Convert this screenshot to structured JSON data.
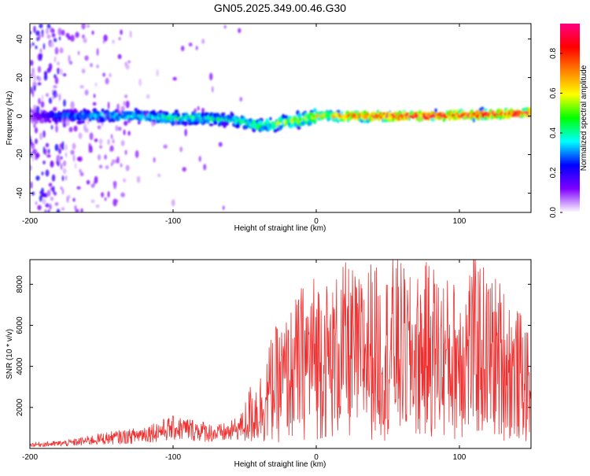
{
  "title": "GN05.2025.349.00.46.G30",
  "chart_data": [
    {
      "type": "heatmap",
      "xlabel": "Height of straight line (km)",
      "ylabel": "Frequency (Hz)",
      "xlim": [
        -200,
        150
      ],
      "ylim": [
        -50,
        48
      ],
      "xticks": [
        -200,
        -100,
        0,
        100
      ],
      "yticks": [
        -40,
        -20,
        0,
        20,
        40
      ],
      "grid": false,
      "colorbar": {
        "label": "Normalized spectral amplitude",
        "range": [
          0,
          0.95
        ],
        "ticks": [
          0.0,
          0.2,
          0.4,
          0.6,
          0.8
        ],
        "colors": [
          "#ffffff",
          "#7f00ff",
          "#0000ff",
          "#00ffff",
          "#00ff00",
          "#ffff00",
          "#ff8000",
          "#ff0000",
          "#ff0080"
        ]
      },
      "ridge": {
        "x": [
          -200,
          -175,
          -150,
          -125,
          -100,
          -80,
          -60,
          -50,
          -40,
          -30,
          -20,
          -10,
          0,
          10,
          20,
          40,
          60,
          80,
          100,
          120,
          150
        ],
        "frequency": [
          0,
          0,
          0,
          0,
          -1,
          -1,
          -2,
          -3,
          -5,
          -4,
          -3,
          -2,
          0,
          0,
          0,
          0,
          0,
          0,
          0.5,
          1,
          1.5
        ],
        "peak_amplitude": [
          0.1,
          0.3,
          0.35,
          0.35,
          0.4,
          0.4,
          0.35,
          0.4,
          0.45,
          0.45,
          0.5,
          0.55,
          0.55,
          0.6,
          0.75,
          0.8,
          0.85,
          0.85,
          0.85,
          0.85,
          0.85
        ]
      }
    },
    {
      "type": "line",
      "xlabel": "Height of straight line (km)",
      "ylabel": "SNR (10 * v/v)",
      "xlim": [
        -200,
        150
      ],
      "ylim": [
        0,
        9200
      ],
      "xticks": [
        -200,
        -100,
        0,
        100
      ],
      "yticks": [
        2000,
        4000,
        6000,
        8000
      ],
      "grid": false,
      "color": "#f03030",
      "series": [
        {
          "x": [
            -200,
            -190,
            -180,
            -170,
            -160,
            -150,
            -140,
            -130,
            -120,
            -110,
            -100,
            -90,
            -80,
            -70,
            -60,
            -50,
            -45,
            -40,
            -35,
            -30,
            -25,
            -20,
            -15,
            -10,
            -5,
            0,
            5,
            10,
            15,
            20,
            25,
            30,
            35,
            40,
            45,
            50,
            55,
            60,
            65,
            70,
            75,
            80,
            85,
            90,
            95,
            100,
            105,
            110,
            115,
            120,
            125,
            130,
            135,
            140,
            145,
            150
          ],
          "values": [
            200,
            230,
            260,
            320,
            420,
            520,
            600,
            650,
            800,
            950,
            1100,
            1050,
            950,
            800,
            900,
            1300,
            1900,
            2000,
            2600,
            3300,
            3400,
            3700,
            4100,
            4500,
            4700,
            4900,
            4900,
            4400,
            4900,
            5100,
            5000,
            4700,
            5200,
            5200,
            4700,
            5000,
            5400,
            5100,
            4700,
            4800,
            5000,
            5300,
            4900,
            4800,
            4600,
            4900,
            5000,
            5500,
            5200,
            4800,
            4800,
            4600,
            4200,
            3900,
            3600,
            2800
          ]
        }
      ]
    }
  ]
}
